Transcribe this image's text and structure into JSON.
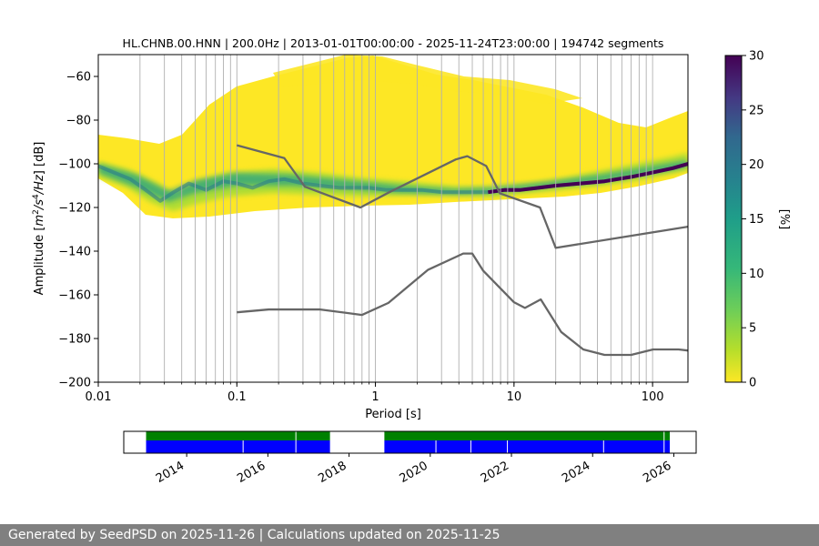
{
  "chart_data": [
    {
      "type": "heatmap",
      "title": "HL.CHNB.00.HNN | 200.0Hz | 2013-01-01T00:00:00 - 2025-11-24T23:00:00 | 194742 segments",
      "xlabel": "Period [s]",
      "ylabel_parts": [
        "Amplitude [",
        "m",
        "2",
        "/",
        "s",
        "4",
        "/",
        "Hz",
        "] [dB]"
      ],
      "xscale": "log",
      "xlim": [
        0.01,
        180
      ],
      "ylim": [
        -200,
        -50
      ],
      "x_ticks": [
        {
          "value": 0.01,
          "label": "0.01"
        },
        {
          "value": 0.1,
          "label": "0.1"
        },
        {
          "value": 1,
          "label": "1"
        },
        {
          "value": 10,
          "label": "10"
        },
        {
          "value": 100,
          "label": "100"
        }
      ],
      "y_ticks": [
        {
          "value": -60,
          "label": "−60"
        },
        {
          "value": -80,
          "label": "−80"
        },
        {
          "value": -100,
          "label": "−100"
        },
        {
          "value": -120,
          "label": "−120"
        },
        {
          "value": -140,
          "label": "−140"
        },
        {
          "value": -160,
          "label": "−160"
        },
        {
          "value": -180,
          "label": "−180"
        },
        {
          "value": -200,
          "label": "−200"
        }
      ],
      "grid_x_periods": [
        0.02,
        0.03,
        0.04,
        0.05,
        0.06,
        0.07,
        0.08,
        0.09,
        0.1,
        0.2,
        0.3,
        0.4,
        0.5,
        0.6,
        0.7,
        0.8,
        0.9,
        1,
        2,
        3,
        4,
        5,
        6,
        7,
        8,
        9,
        10,
        20,
        30,
        40,
        50,
        60,
        70,
        80,
        90,
        100
      ],
      "mode_curve": {
        "period": [
          0.01,
          0.013,
          0.017,
          0.022,
          0.028,
          0.035,
          0.045,
          0.06,
          0.08,
          0.1,
          0.13,
          0.17,
          0.22,
          0.3,
          0.4,
          0.55,
          0.7,
          0.9,
          1.2,
          1.6,
          2.2,
          3,
          4,
          5,
          6.5,
          8.5,
          11,
          15,
          20,
          30,
          45,
          70,
          100,
          140,
          180
        ],
        "amplitude_db": [
          -101,
          -104,
          -107,
          -112,
          -117,
          -113,
          -109,
          -112,
          -108,
          -109,
          -111,
          -108,
          -107,
          -109,
          -110,
          -111,
          -111,
          -111,
          -112,
          -112,
          -112,
          -113,
          -113,
          -113,
          -113,
          -112,
          -112,
          -111,
          -110,
          -109,
          -108,
          -106,
          -104,
          -102,
          -100
        ]
      },
      "model_curves": [
        {
          "period": [
            0.1,
            0.22,
            0.31,
            0.78,
            1.26,
            3.8,
            4.6,
            6.3,
            7.9,
            15.4,
            20,
            180
          ],
          "amplitude_db": [
            -91.5,
            -97.4,
            -110.5,
            -120,
            -113,
            -98,
            -96.5,
            -101,
            -113.5,
            -120,
            -138.5,
            -128.8
          ]
        },
        {
          "period": [
            0.1,
            0.17,
            0.4,
            0.8,
            1.24,
            2.4,
            4.3,
            5,
            6,
            10,
            12,
            15.6,
            21.9,
            31.6,
            45,
            70,
            101,
            154,
            180
          ],
          "amplitude_db": [
            -168,
            -166.7,
            -166.7,
            -169.2,
            -163.7,
            -148.5,
            -141.1,
            -141.1,
            -149,
            -163.4,
            -166,
            -162.1,
            -177,
            -185,
            -187.5,
            -187.5,
            -185,
            -185,
            -185.5
          ]
        }
      ],
      "colorbar": {
        "label": "[%]",
        "range": [
          0,
          30
        ],
        "ticks": [
          "0",
          "5",
          "10",
          "15",
          "20",
          "25",
          "30"
        ],
        "colormap": "viridis_r"
      }
    },
    {
      "type": "timeline",
      "x_ticks": [
        "2014",
        "2016",
        "2018",
        "2020",
        "2022",
        "2024",
        "2026"
      ],
      "colors": {
        "upper": "#008000",
        "lower": "#0000ff"
      },
      "upper_intervals": [
        [
          2013.0,
          2017.53
        ],
        [
          2018.87,
          2025.9
        ]
      ],
      "lower_intervals": [
        [
          2013.0,
          2017.53
        ],
        [
          2018.87,
          2025.9
        ]
      ],
      "upper_breaks": [
        2016.69,
        2025.76
      ],
      "lower_breaks": [
        2015.39,
        2016.69,
        2020.14,
        2021.0,
        2021.9,
        2024.27,
        2025.76
      ]
    }
  ],
  "footer": {
    "text": "Generated by SeedPSD on 2025-11-26 | Calculations updated on 2025-11-25"
  }
}
